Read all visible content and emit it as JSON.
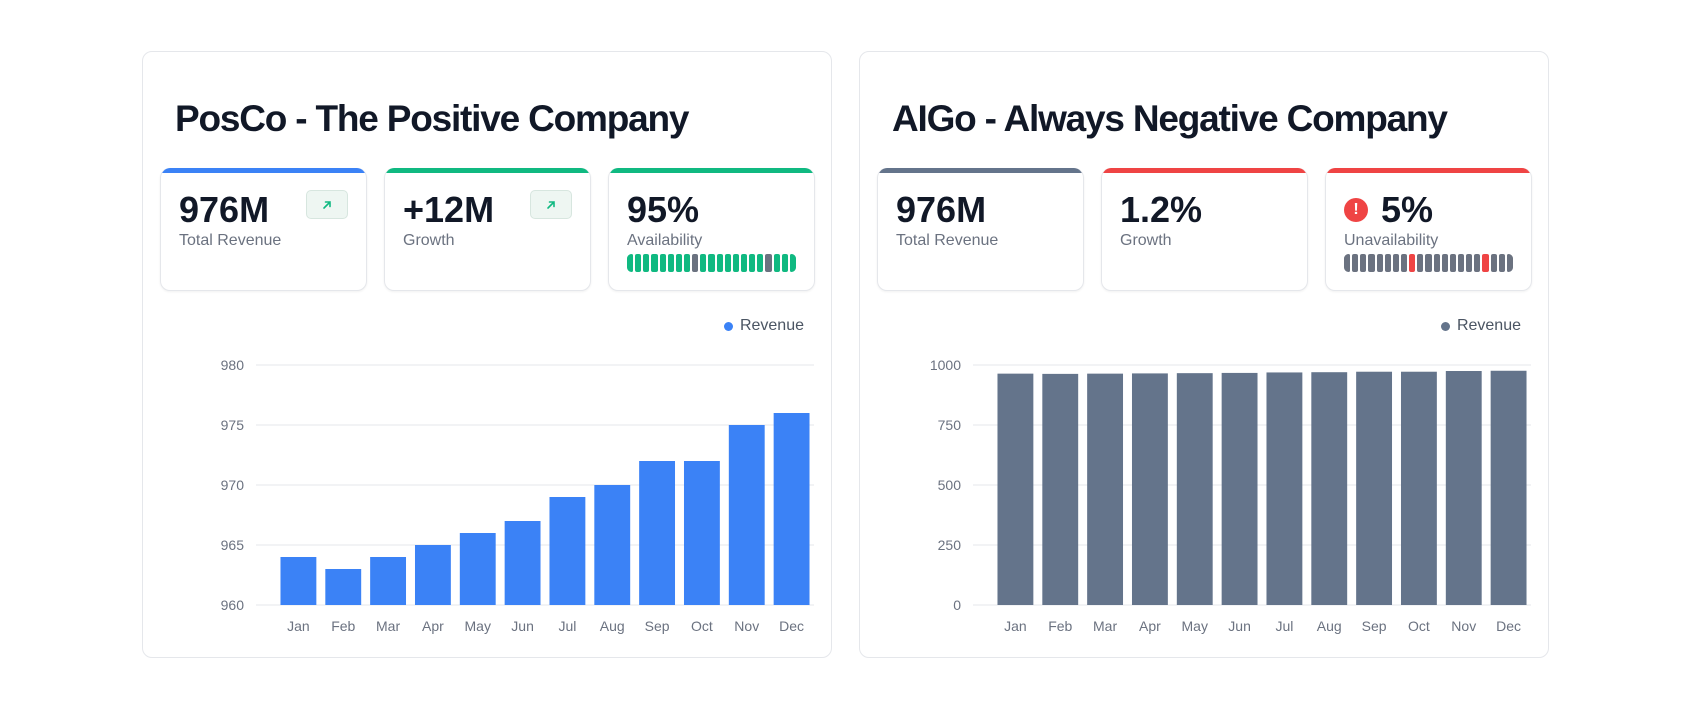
{
  "panels": [
    {
      "title": "PosCo - The Positive Company",
      "stats": [
        {
          "value": "976M",
          "label": "Total Revenue",
          "accent": "#3b82f6",
          "icon": "arrow-up-right-icon"
        },
        {
          "value": "+12M",
          "label": "Growth",
          "accent": "#10b981",
          "icon": "arrow-up-right-icon"
        },
        {
          "value": "95%",
          "label": "Availability",
          "accent": "#10b981",
          "segments": [
            "ok",
            "ok",
            "ok",
            "ok",
            "ok",
            "ok",
            "ok",
            "ok",
            "down",
            "ok",
            "ok",
            "ok",
            "ok",
            "ok",
            "ok",
            "ok",
            "ok",
            "down",
            "ok",
            "ok",
            "ok"
          ],
          "segment_colors": {
            "ok": "#10b981",
            "down": "#6b7280"
          }
        }
      ],
      "legend": "Revenue",
      "color": "#3b82f6"
    },
    {
      "title": "AIGo - Always Negative Company",
      "stats": [
        {
          "value": "976M",
          "label": "Total Revenue",
          "accent": "#64748b"
        },
        {
          "value": "1.2%",
          "label": "Growth",
          "accent": "#ef4444"
        },
        {
          "value": "5%",
          "label": "Unavailability",
          "accent": "#ef4444",
          "icon": "alert-icon",
          "icon_text": "!",
          "segments": [
            "ok",
            "ok",
            "ok",
            "ok",
            "ok",
            "ok",
            "ok",
            "ok",
            "down",
            "ok",
            "ok",
            "ok",
            "ok",
            "ok",
            "ok",
            "ok",
            "ok",
            "down",
            "ok",
            "ok",
            "ok"
          ],
          "segment_colors": {
            "ok": "#6b7280",
            "down": "#ef4444"
          }
        }
      ],
      "legend": "Revenue",
      "color": "#64748b"
    }
  ],
  "chart_data": [
    {
      "type": "bar",
      "title": "PosCo - The Positive Company",
      "categories": [
        "Jan",
        "Feb",
        "Mar",
        "Apr",
        "May",
        "Jun",
        "Jul",
        "Aug",
        "Sep",
        "Oct",
        "Nov",
        "Dec"
      ],
      "series": [
        {
          "name": "Revenue",
          "values": [
            964,
            963,
            964,
            965,
            966,
            967,
            969,
            970,
            972,
            972,
            975,
            976
          ],
          "color": "#3b82f6"
        }
      ],
      "yticks": [
        "960",
        "965",
        "970",
        "975",
        "980"
      ],
      "ylim": [
        960,
        980
      ],
      "legend": "top-right",
      "grid": true
    },
    {
      "type": "bar",
      "title": "AIGo - Always Negative Company",
      "categories": [
        "Jan",
        "Feb",
        "Mar",
        "Apr",
        "May",
        "Jun",
        "Jul",
        "Aug",
        "Sep",
        "Oct",
        "Nov",
        "Dec"
      ],
      "series": [
        {
          "name": "Revenue",
          "values": [
            964,
            963,
            964,
            965,
            966,
            967,
            969,
            970,
            972,
            972,
            975,
            976
          ],
          "color": "#64748b"
        }
      ],
      "yticks": [
        "0",
        "250",
        "500",
        "750",
        "1000"
      ],
      "ylim": [
        0,
        1000
      ],
      "legend": "top-right",
      "grid": true
    }
  ]
}
